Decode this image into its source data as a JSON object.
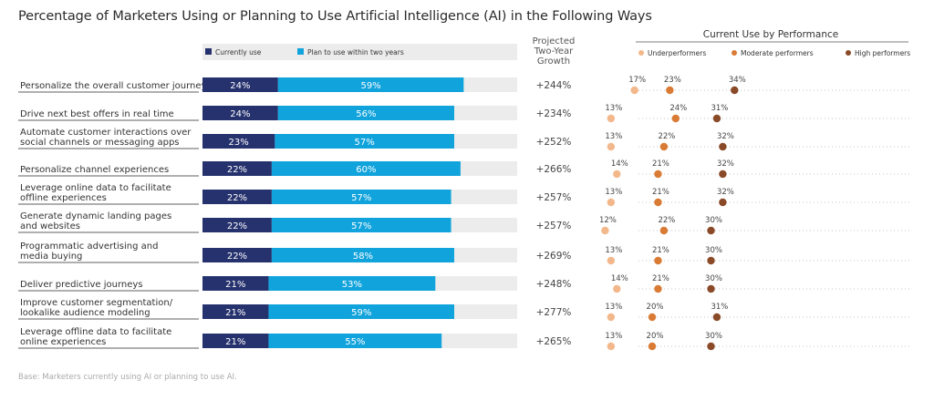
{
  "title": "Percentage of Marketers Using or Planning to Use Artificial Intelligence (AI) in the Following Ways",
  "footnote": "Base: Marketers currently using AI or planning to use AI.",
  "colors": {
    "currently": "#26326e",
    "plan": "#11a3dc",
    "track": "#ececec",
    "underperformers": "#f2b88c",
    "moderate": "#d97b35",
    "high": "#8a4a28",
    "dotline": "#c6c6c6"
  },
  "chart_data": [
    {
      "type": "bar",
      "stacked": true,
      "legend": [
        "Currently use",
        "Plan to use within two years"
      ],
      "growth_header": [
        "Projected",
        "Two-Year",
        "Growth"
      ],
      "categories": [
        "Personalize the overall customer journey",
        "Drive next best offers in real time",
        "Automate customer interactions over social channels or messaging apps",
        "Personalize channel experiences",
        "Leverage online data to facilitate offline experiences",
        "Generate dynamic landing pages and websites",
        "Programmatic advertising and media buying",
        "Deliver predictive journeys",
        "Improve customer segmentation/ lookalike audience modeling",
        "Leverage offline data to facilitate online experiences"
      ],
      "category_lines": [
        [
          "Personalize the overall customer journey"
        ],
        [
          "Drive next best offers in real time"
        ],
        [
          "Automate customer interactions over",
          "social channels or messaging apps"
        ],
        [
          "Personalize channel experiences"
        ],
        [
          "Leverage online data to facilitate",
          "offline experiences"
        ],
        [
          "Generate dynamic landing pages",
          "and websites"
        ],
        [
          "Programmatic advertising and",
          "media buying"
        ],
        [
          "Deliver predictive journeys"
        ],
        [
          "Improve customer segmentation/",
          "lookalike audience modeling"
        ],
        [
          "Leverage offline data to facilitate",
          "online experiences"
        ]
      ],
      "series": [
        {
          "name": "Currently use",
          "values": [
            24,
            24,
            23,
            22,
            22,
            22,
            22,
            21,
            21,
            21
          ]
        },
        {
          "name": "Plan to use within two years",
          "values": [
            59,
            56,
            57,
            60,
            57,
            57,
            58,
            53,
            59,
            55
          ]
        }
      ],
      "growth": [
        "+244%",
        "+234%",
        "+252%",
        "+266%",
        "+257%",
        "+257%",
        "+269%",
        "+248%",
        "+277%",
        "+265%"
      ],
      "ylim": [
        0,
        100
      ]
    },
    {
      "type": "scatter",
      "title": "Current Use by Performance",
      "legend": [
        "Underperformers",
        "Moderate performers",
        "High performers"
      ],
      "series": [
        {
          "name": "Underperformers",
          "values": [
            17,
            13,
            13,
            14,
            13,
            12,
            13,
            14,
            13,
            13
          ]
        },
        {
          "name": "Moderate performers",
          "values": [
            23,
            24,
            22,
            21,
            21,
            22,
            21,
            21,
            20,
            20
          ]
        },
        {
          "name": "High performers",
          "values": [
            34,
            31,
            32,
            32,
            32,
            30,
            30,
            30,
            31,
            30
          ]
        }
      ],
      "xlim": [
        0,
        35
      ]
    }
  ]
}
